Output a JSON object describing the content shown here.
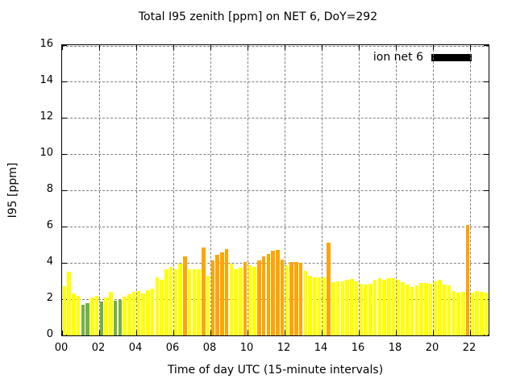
{
  "title": "Total I95 zenith [ppm] on NET 6, DoY=292",
  "legend": {
    "label": "ion net 6",
    "swatch_color": "#000000",
    "position": "top-right"
  },
  "axes": {
    "ylabel": "I95 [ppm]",
    "xlabel": "Time of day UTC (15-minute intervals)"
  },
  "chart_data": {
    "type": "bar",
    "title": "Total I95 zenith [ppm] on NET 6, DoY=292",
    "xlabel": "Time of day UTC (15-minute intervals)",
    "ylabel": "I95 [ppm]",
    "xlim": [
      0,
      23
    ],
    "ylim": [
      0,
      16
    ],
    "grid": true,
    "grid_color": "#808080",
    "legend": {
      "label": "ion net 6",
      "swatch_color": "#000000",
      "position": "top-right"
    },
    "xtick_labels": [
      "00",
      "02",
      "04",
      "06",
      "08",
      "10",
      "12",
      "14",
      "16",
      "18",
      "20",
      "22"
    ],
    "xtick_step_hours": 2,
    "ytick_labels": [
      "0",
      "2",
      "4",
      "6",
      "8",
      "10",
      "12",
      "14",
      "16"
    ],
    "ytick_step": 2,
    "interval_minutes": 15,
    "bar_colors": {
      "green": "#76b043",
      "yellow": "#ffff00",
      "orange": "#ffa500"
    },
    "color_thresholds": {
      "green_below": 2,
      "orange_at_or_above": 4
    },
    "times": [
      "00:00",
      "00:15",
      "00:30",
      "00:45",
      "01:00",
      "01:15",
      "01:30",
      "01:45",
      "02:00",
      "02:15",
      "02:30",
      "02:45",
      "03:00",
      "03:15",
      "03:30",
      "03:45",
      "04:00",
      "04:15",
      "04:30",
      "04:45",
      "05:00",
      "05:15",
      "05:30",
      "05:45",
      "06:00",
      "06:15",
      "06:30",
      "06:45",
      "07:00",
      "07:15",
      "07:30",
      "07:45",
      "08:00",
      "08:15",
      "08:30",
      "08:45",
      "09:00",
      "09:15",
      "09:30",
      "09:45",
      "10:00",
      "10:15",
      "10:30",
      "10:45",
      "11:00",
      "11:15",
      "11:30",
      "11:45",
      "12:00",
      "12:15",
      "12:30",
      "12:45",
      "13:00",
      "13:15",
      "13:30",
      "13:45",
      "14:00",
      "14:15",
      "14:30",
      "14:45",
      "15:00",
      "15:15",
      "15:30",
      "15:45",
      "16:00",
      "16:15",
      "16:30",
      "16:45",
      "17:00",
      "17:15",
      "17:30",
      "17:45",
      "18:00",
      "18:15",
      "18:30",
      "18:45",
      "19:00",
      "19:15",
      "19:30",
      "19:45",
      "20:00",
      "20:15",
      "20:30",
      "20:45",
      "21:00",
      "21:15",
      "21:30",
      "21:45",
      "22:00",
      "22:15",
      "22:30",
      "22:45"
    ],
    "values": [
      2.7,
      3.5,
      2.3,
      2.2,
      1.7,
      1.8,
      2.1,
      2.2,
      1.85,
      2.1,
      2.4,
      1.9,
      1.95,
      2.15,
      2.25,
      2.4,
      2.45,
      2.3,
      2.5,
      2.6,
      3.2,
      3.05,
      3.65,
      3.8,
      3.65,
      3.95,
      4.35,
      3.65,
      3.65,
      3.65,
      4.85,
      3.3,
      4.15,
      4.45,
      4.6,
      4.75,
      3.95,
      3.65,
      3.75,
      4.05,
      3.85,
      3.8,
      4.15,
      4.35,
      4.5,
      4.65,
      4.7,
      4.2,
      3.85,
      4.05,
      4.05,
      4.0,
      3.55,
      3.3,
      3.2,
      3.2,
      3.2,
      5.1,
      2.95,
      3.0,
      3.0,
      3.05,
      3.1,
      3.0,
      2.85,
      2.8,
      2.85,
      3.05,
      3.15,
      3.05,
      3.15,
      3.15,
      3.05,
      2.95,
      2.8,
      2.65,
      2.75,
      2.9,
      2.9,
      2.85,
      3.0,
      3.05,
      2.8,
      2.75,
      2.45,
      2.35,
      2.4,
      6.1,
      2.35,
      2.45,
      2.4,
      2.35
    ]
  }
}
